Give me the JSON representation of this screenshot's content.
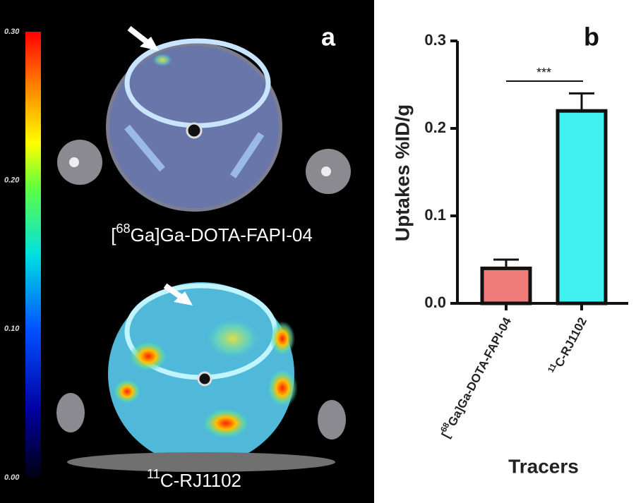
{
  "panel_a": {
    "label": "a",
    "colorbar": {
      "lim": [
        0,
        0.3
      ],
      "ticks": [
        {
          "value": 0.3,
          "label": "0.30"
        },
        {
          "value": 0.2,
          "label": "0.20"
        },
        {
          "value": 0.1,
          "label": "0.10"
        },
        {
          "value": 0,
          "label": "0.00"
        }
      ]
    },
    "image_labels": [
      "[68Ga]Ga-DOTA-FAPI-04",
      "11C-RJ1102"
    ]
  },
  "chart_data": {
    "type": "bar",
    "panel_label": "b",
    "categories": [
      "[68Ga]Ga-DOTA-FAPI-04",
      "11C-RJ1102"
    ],
    "values": [
      0.04,
      0.22
    ],
    "errors": [
      0.01,
      0.02
    ],
    "colors": [
      "#f07a7a",
      "#40f0f0"
    ],
    "ylabel": "Uptakes %ID/g",
    "xlabel": "Tracers",
    "ylim": [
      0,
      0.3
    ],
    "yticks": [
      {
        "value": 0,
        "label": "0.0"
      },
      0.1,
      0.2,
      0.3
    ],
    "annotation": "***"
  }
}
